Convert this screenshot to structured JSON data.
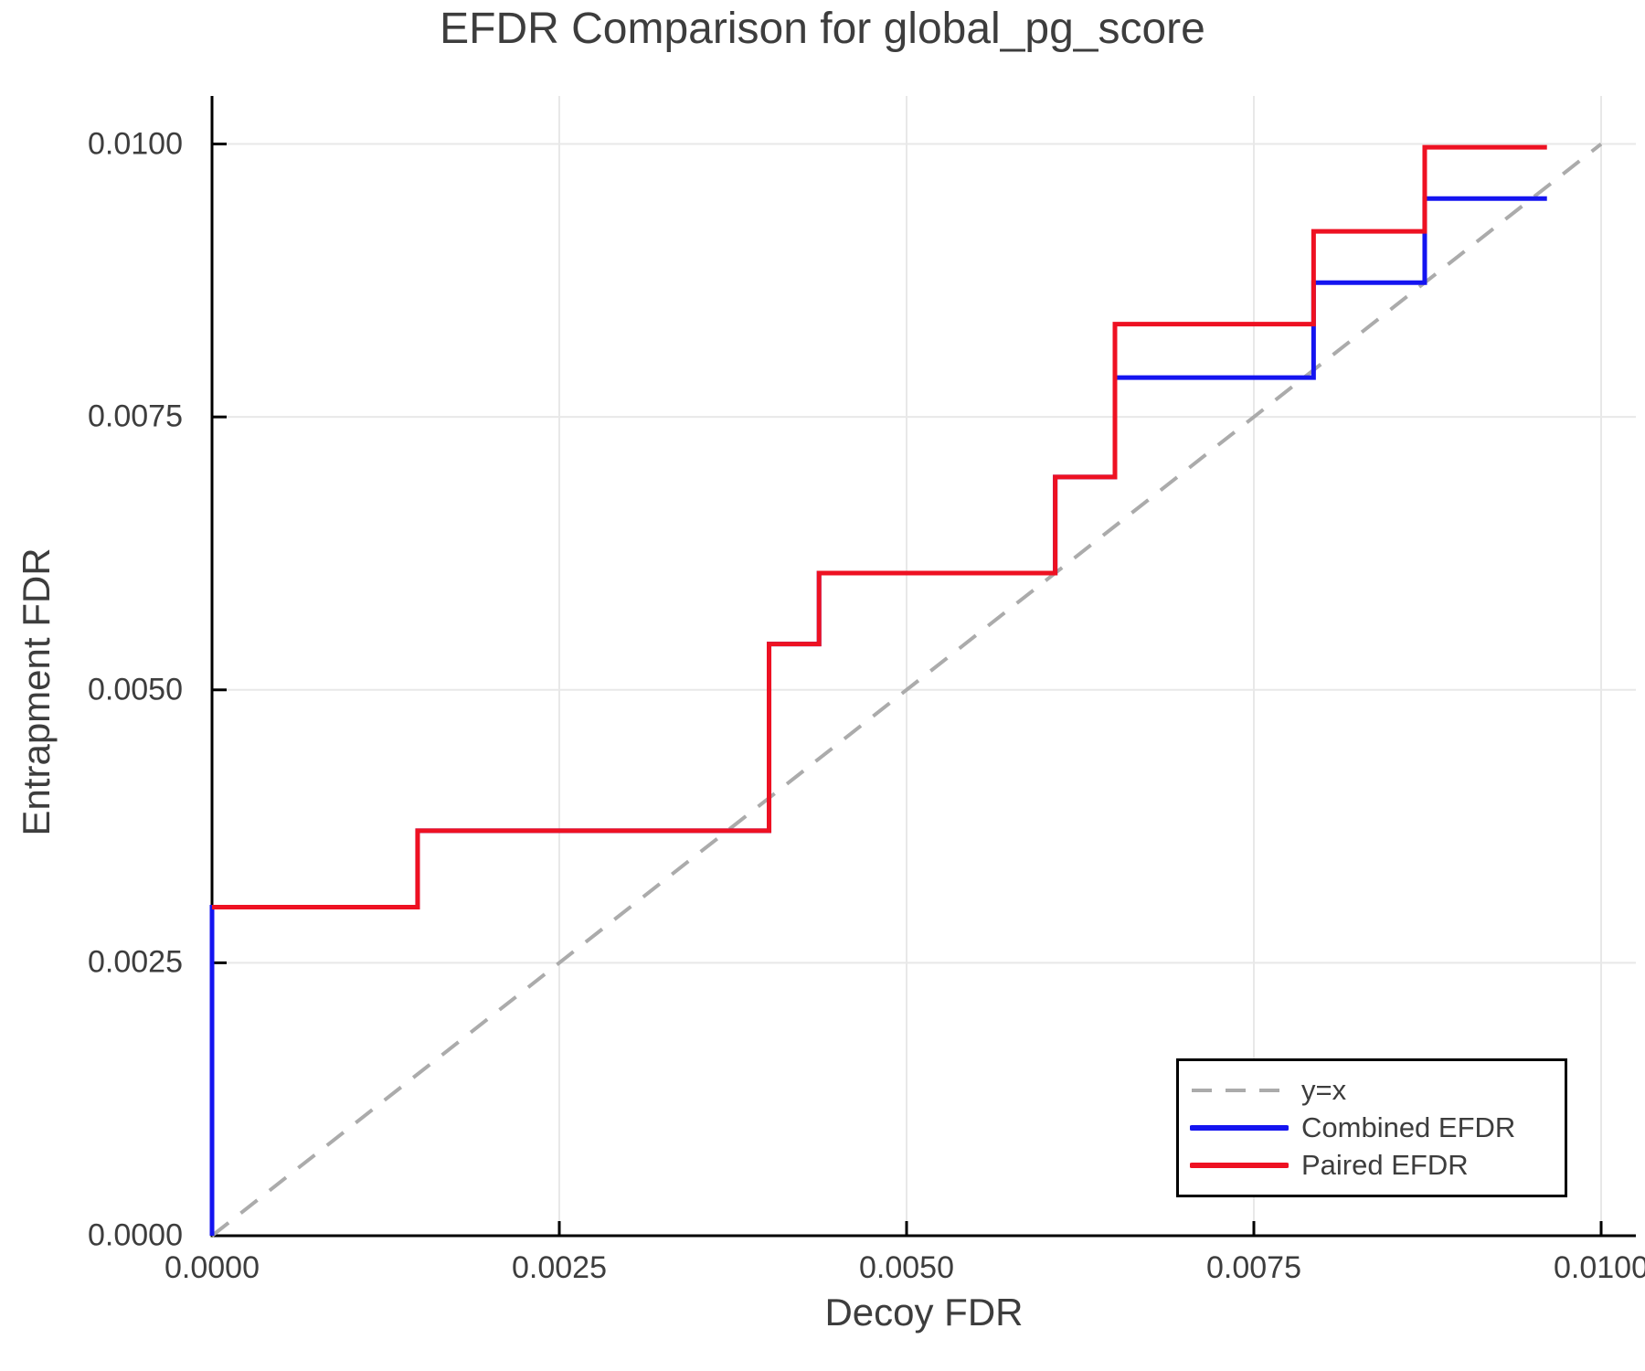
{
  "title": "EFDR Comparison for global_pg_score",
  "xlabel": "Decoy FDR",
  "ylabel": "Entrapment FDR",
  "colors": {
    "identity_line": "#ababab",
    "combined": "#1414f0",
    "paired": "#ee1122",
    "grid": "#e8e8e8",
    "axis": "#000000",
    "text": "#3d3d3d"
  },
  "legend": {
    "items": [
      {
        "label": "y=x"
      },
      {
        "label": "Combined EFDR"
      },
      {
        "label": "Paired EFDR"
      }
    ]
  },
  "chart_data": {
    "type": "line",
    "title": "EFDR Comparison for global_pg_score",
    "xlabel": "Decoy FDR",
    "ylabel": "Entrapment FDR",
    "xlim": [
      0,
      0.01025
    ],
    "ylim": [
      0,
      0.01044
    ],
    "grid": true,
    "legend_position": "bottom-right",
    "xticks": {
      "values": [
        0,
        0.0025,
        0.005,
        0.0075,
        0.01
      ],
      "labels": [
        "0.0000",
        "0.0025",
        "0.0050",
        "0.0075",
        "0.0100"
      ]
    },
    "yticks": {
      "values": [
        0,
        0.0025,
        0.005,
        0.0075,
        0.01
      ],
      "labels": [
        "0.0000",
        "0.0025",
        "0.0050",
        "0.0075",
        "0.0100"
      ]
    },
    "series": [
      {
        "name": "y=x",
        "style": "dashed",
        "color": "#ababab",
        "x": [
          0,
          0.01
        ],
        "y": [
          0,
          0.01
        ]
      },
      {
        "name": "Combined EFDR",
        "style": "solid",
        "color": "#1414f0",
        "x": [
          0,
          0,
          0.00148,
          0.00148,
          0.00401,
          0.00401,
          0.00437,
          0.00437,
          0.00607,
          0.00607,
          0.0065,
          0.0065,
          0.00793,
          0.00793,
          0.00873,
          0.00873,
          0.00961
        ],
        "y": [
          0,
          0.00301,
          0.00301,
          0.00371,
          0.00371,
          0.00542,
          0.00542,
          0.00607,
          0.00607,
          0.00695,
          0.00695,
          0.00786,
          0.00786,
          0.00873,
          0.00873,
          0.0095,
          0.0095
        ]
      },
      {
        "name": "Paired EFDR",
        "style": "solid",
        "color": "#ee1122",
        "x": [
          0,
          0.00148,
          0.00148,
          0.00401,
          0.00401,
          0.00437,
          0.00437,
          0.00607,
          0.00607,
          0.0065,
          0.0065,
          0.00793,
          0.00793,
          0.00873,
          0.00873,
          0.00961
        ],
        "y": [
          0.00301,
          0.00301,
          0.00371,
          0.00371,
          0.00542,
          0.00542,
          0.00607,
          0.00607,
          0.00695,
          0.00695,
          0.00835,
          0.00835,
          0.0092,
          0.0092,
          0.00997,
          0.00997
        ]
      }
    ]
  }
}
